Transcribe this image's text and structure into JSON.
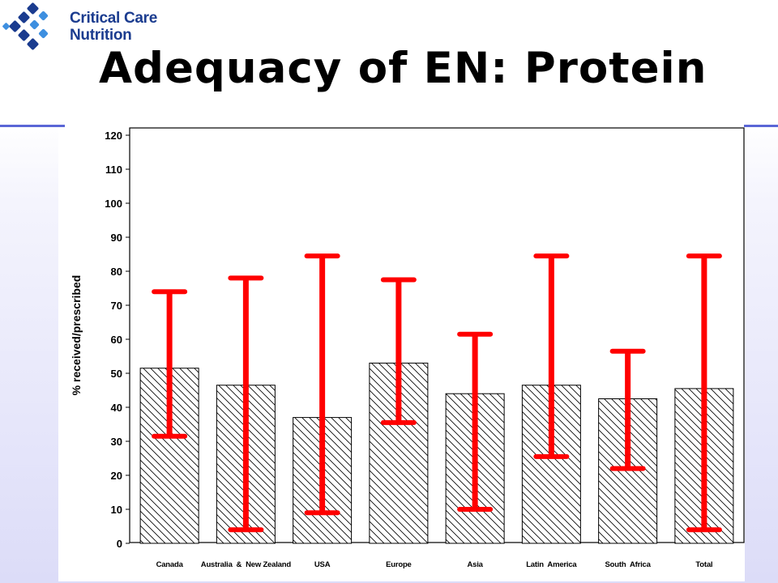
{
  "brand": {
    "line1": "Critical Care",
    "line2": "Nutrition",
    "icon": "ccn-logo-icon",
    "color": "#1b3c8f"
  },
  "slide": {
    "title": "Adequacy of EN: Protein",
    "rule_color": "#5a66d6"
  },
  "chart_data": {
    "type": "bar",
    "ylabel": "% received/prescribed",
    "xlabel": "",
    "ylim": [
      0,
      120
    ],
    "yticks": [
      0,
      10,
      20,
      30,
      40,
      50,
      60,
      70,
      80,
      90,
      100,
      110,
      120
    ],
    "grid": false,
    "bar_fill": "diagonal-hatch",
    "errorbar_color": "#ff0000",
    "categories": [
      "Canada",
      "Australia  &  New Zealand",
      "USA",
      "Europe",
      "Asia",
      "Latin  America",
      "South  Africa",
      "Total"
    ],
    "values": [
      51.5,
      46.5,
      37,
      53,
      44,
      46.5,
      42.5,
      45.5
    ],
    "error_low": [
      31.5,
      4,
      9,
      35.5,
      10,
      25.5,
      22,
      4
    ],
    "error_high": [
      74,
      78,
      84.5,
      77.5,
      61.5,
      84.5,
      56.5,
      84.5
    ]
  }
}
